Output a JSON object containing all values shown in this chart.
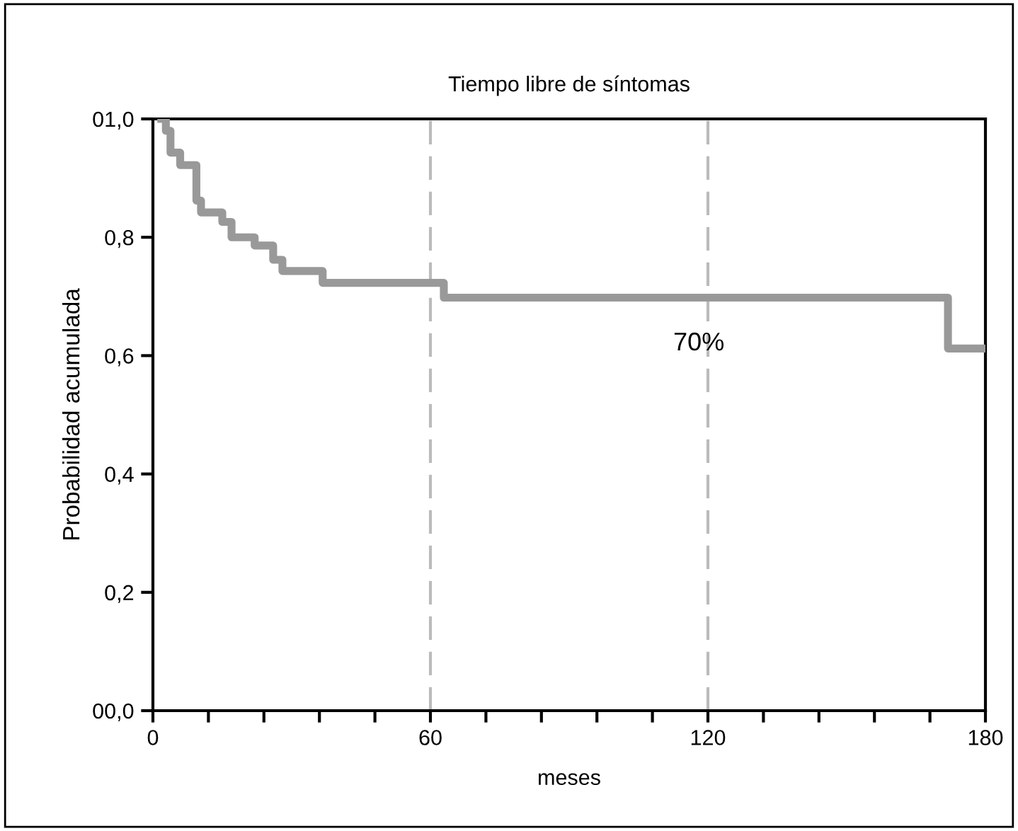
{
  "chart_data": {
    "type": "step",
    "title": "Tiempo libre de síntomas",
    "xlabel": "meses",
    "ylabel": "Probabilidad acumulada",
    "x": [
      1.8,
      2.8,
      3.8,
      5.9,
      9.4,
      10.4,
      15,
      17,
      22,
      26,
      28,
      36.7,
      62.9,
      171.9,
      180
    ],
    "series": [
      {
        "color": "#999999",
        "values": [
          1.0,
          0.98,
          0.943,
          0.922,
          0.862,
          0.842,
          0.826,
          0.8,
          0.786,
          0.762,
          0.743,
          0.723,
          0.698,
          0.612,
          0.612
        ]
      }
    ],
    "xlim": [
      0,
      180
    ],
    "xticks": [
      0,
      {
        "value": 12,
        "label": null
      },
      {
        "value": 24,
        "label": null
      },
      {
        "value": 36,
        "label": null
      },
      {
        "value": 48,
        "label": null
      },
      60,
      {
        "value": 72,
        "label": null
      },
      {
        "value": 84,
        "label": null
      },
      {
        "value": 96,
        "label": null
      },
      {
        "value": 108,
        "label": null
      },
      120,
      {
        "value": 132,
        "label": null
      },
      {
        "value": 144,
        "label": null
      },
      {
        "value": 156,
        "label": null
      },
      {
        "value": 168,
        "label": null
      },
      180
    ],
    "ylim": [
      0,
      1
    ],
    "yticks": [
      {
        "value": 0,
        "label": "00,0"
      },
      {
        "value": 0.2,
        "label": "0,2"
      },
      {
        "value": 0.4,
        "label": "0,4"
      },
      {
        "value": 0.6,
        "label": "0,6"
      },
      {
        "value": 0.8,
        "label": "0,8"
      },
      {
        "value": 1.0,
        "label": "01,0"
      }
    ],
    "ref_lines": [
      {
        "axis": "x",
        "value": 60,
        "color": "#bbbbbb",
        "line_style": "dashed"
      },
      {
        "axis": "x",
        "value": 120,
        "color": "#bbbbbb",
        "line_style": "dashed"
      }
    ],
    "annotations": [
      "70%"
    ],
    "grid": false,
    "legend": false
  }
}
